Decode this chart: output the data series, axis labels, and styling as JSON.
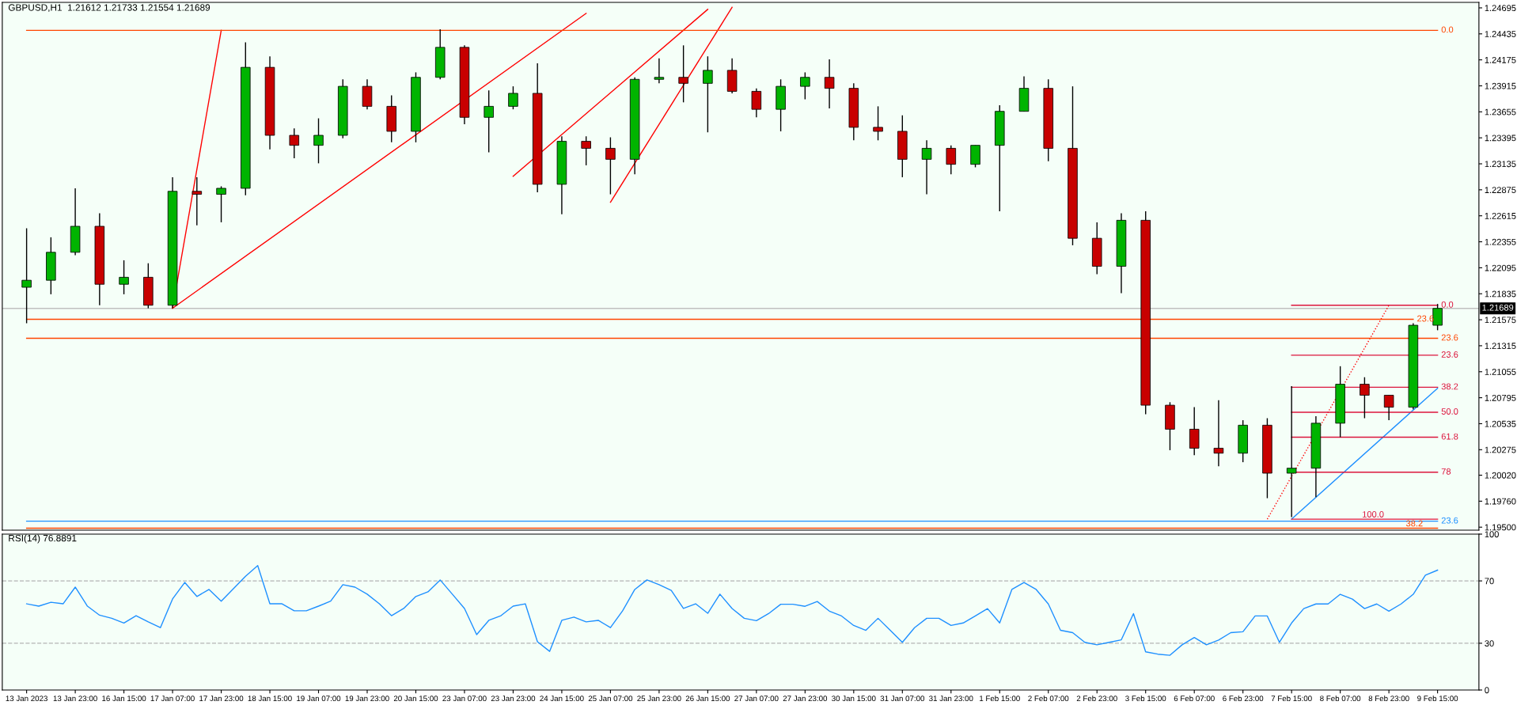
{
  "chart_data": [
    {
      "type": "candlestick",
      "title": "GBPUSD,H1  1.21612 1.21733 1.21554 1.21689",
      "categories": [
        null,
        null,
        null,
        null,
        null,
        null,
        null,
        null,
        null,
        null,
        null,
        null,
        null,
        null,
        null,
        null,
        null,
        null,
        null,
        null,
        null,
        null,
        null,
        null,
        null,
        null,
        null,
        null,
        null,
        null,
        null,
        null,
        null,
        null,
        null,
        null,
        null,
        null,
        null,
        null,
        null,
        null,
        null,
        null,
        null,
        null,
        null,
        null,
        null,
        null,
        null,
        null,
        null,
        null,
        null,
        null,
        null,
        null,
        null
      ],
      "ohlc": [
        [
          1.219,
          1.2249,
          1.2154,
          1.2197
        ],
        [
          1.2197,
          1.224,
          1.2183,
          1.2225
        ],
        [
          1.2225,
          1.2289,
          1.2222,
          1.2251
        ],
        [
          1.2251,
          1.2264,
          1.2172,
          1.2193
        ],
        [
          1.2193,
          1.2217,
          1.2183,
          1.22
        ],
        [
          1.22,
          1.2214,
          1.2169,
          1.2172
        ],
        [
          1.2172,
          1.23,
          1.2169,
          1.2286
        ],
        [
          1.2286,
          1.23,
          1.2252,
          1.2283
        ],
        [
          1.2283,
          1.2291,
          1.2255,
          1.2289
        ],
        [
          1.2289,
          1.2435,
          1.2282,
          1.241
        ],
        [
          1.241,
          1.2421,
          1.2328,
          1.2342
        ],
        [
          1.2342,
          1.2349,
          1.2319,
          1.2332
        ],
        [
          1.2332,
          1.2359,
          1.2314,
          1.2342
        ],
        [
          1.2342,
          1.2398,
          1.2339,
          1.2391
        ],
        [
          1.2391,
          1.2398,
          1.2368,
          1.2371
        ],
        [
          1.2371,
          1.2382,
          1.2335,
          1.2346
        ],
        [
          1.2346,
          1.2405,
          1.2335,
          1.24
        ],
        [
          1.24,
          1.2448,
          1.2398,
          1.243
        ],
        [
          1.243,
          1.2432,
          1.2353,
          1.236
        ],
        [
          1.236,
          1.2387,
          1.2325,
          1.2371
        ],
        [
          1.2371,
          1.2391,
          1.2368,
          1.2384
        ],
        [
          1.2384,
          1.2414,
          1.2285,
          1.2293
        ],
        [
          1.2293,
          1.2341,
          1.2263,
          1.2336
        ],
        [
          1.2336,
          1.2341,
          1.2312,
          1.2329
        ],
        [
          1.2329,
          1.234,
          1.2283,
          1.2318
        ],
        [
          1.2318,
          1.24,
          1.2303,
          1.2398
        ],
        [
          1.2398,
          1.2419,
          1.2394,
          1.24
        ],
        [
          1.24,
          1.2432,
          1.2375,
          1.2394
        ],
        [
          1.2394,
          1.2421,
          1.2345,
          1.2407
        ],
        [
          1.2407,
          1.2419,
          1.2384,
          1.2386
        ],
        [
          1.2386,
          1.2389,
          1.236,
          1.2368
        ],
        [
          1.2368,
          1.2398,
          1.2346,
          1.2391
        ],
        [
          1.2391,
          1.2405,
          1.2378,
          1.24
        ],
        [
          1.24,
          1.2418,
          1.2369,
          1.2389
        ],
        [
          1.2389,
          1.2394,
          1.2337,
          1.235
        ],
        [
          1.235,
          1.2371,
          1.2337,
          1.2346
        ],
        [
          1.2346,
          1.2362,
          1.23,
          1.2318
        ],
        [
          1.2318,
          1.2337,
          1.2283,
          1.2329
        ],
        [
          1.2329,
          1.2332,
          1.2303,
          1.2313
        ],
        [
          1.2313,
          1.2332,
          1.231,
          1.2332
        ],
        [
          1.2332,
          1.2372,
          1.2266,
          1.2366
        ],
        [
          1.2366,
          1.2401,
          1.2366,
          1.2389
        ],
        [
          1.2389,
          1.2398,
          1.2316,
          1.2329
        ],
        [
          1.2329,
          1.2391,
          1.2232,
          1.2239
        ],
        [
          1.2239,
          1.2255,
          1.2203,
          1.2211
        ],
        [
          1.2211,
          1.2264,
          1.2184,
          1.2257
        ],
        [
          1.2257,
          1.2266,
          1.2063,
          1.2072
        ],
        [
          1.2072,
          1.2075,
          1.2027,
          1.2048
        ],
        [
          1.2048,
          1.207,
          1.2022,
          1.2029
        ],
        [
          1.2029,
          1.2077,
          1.2011,
          1.2024
        ],
        [
          1.2024,
          1.2057,
          1.2015,
          1.2052
        ],
        [
          1.2052,
          1.2059,
          1.1979,
          1.2004
        ],
        [
          1.2004,
          1.2091,
          1.196,
          1.2009
        ],
        [
          1.2009,
          1.2061,
          1.198,
          1.2054
        ],
        [
          1.2054,
          1.2111,
          1.204,
          1.2093
        ],
        [
          1.2093,
          1.21,
          1.2059,
          1.2082
        ],
        [
          1.2082,
          1.2082,
          1.2057,
          1.207
        ],
        [
          1.207,
          1.2154,
          1.2068,
          1.2152
        ],
        [
          1.2152,
          1.21733,
          1.2147,
          1.21689
        ]
      ],
      "colors": [
        "#00b400",
        "#00b400",
        "#00b400",
        "#c80000",
        "#00b400",
        "#c80000",
        "#00b400",
        "#c80000",
        "#00b400",
        "#00b400",
        "#c80000",
        "#c80000",
        "#00b400",
        "#00b400",
        "#c80000",
        "#c80000",
        "#00b400",
        "#00b400",
        "#c80000",
        "#00b400",
        "#00b400",
        "#c80000",
        "#00b400",
        "#c80000",
        "#c80000",
        "#00b400",
        "#00b400",
        "#c80000",
        "#00b400",
        "#c80000",
        "#c80000",
        "#00b400",
        "#00b400",
        "#c80000",
        "#c80000",
        "#c80000",
        "#c80000",
        "#00b400",
        "#c80000",
        "#00b400",
        "#00b400",
        "#00b400",
        "#c80000",
        "#c80000",
        "#c80000",
        "#00b400",
        "#c80000",
        "#c80000",
        "#c80000",
        "#c80000",
        "#00b400",
        "#c80000",
        "#00b400",
        "#00b400",
        "#00b400",
        "#c80000",
        "#c80000",
        "#00b400",
        "#00b400"
      ],
      "series": [
        {
          "type": "line",
          "color": "#ff0000",
          "values": [
            null,
            null,
            null,
            null,
            null,
            null,
            1.2169,
            null,
            1.2447,
            null,
            null,
            null,
            null,
            null,
            null,
            null,
            null,
            null,
            null,
            null,
            null,
            null,
            null,
            null,
            null,
            null,
            null,
            null,
            null,
            null,
            null,
            null,
            null,
            null,
            null,
            null,
            null,
            null,
            null,
            null,
            null,
            null,
            null,
            null,
            null,
            null,
            null,
            null,
            null,
            null,
            null,
            null,
            null,
            null,
            null,
            null,
            null,
            null,
            null
          ]
        },
        {
          "type": "line",
          "color": "#ff0000",
          "values": [
            null,
            null,
            null,
            null,
            null,
            null,
            1.2169,
            null,
            null,
            null,
            null,
            null,
            null,
            null,
            null,
            null,
            null,
            null,
            null,
            null,
            null,
            null,
            null,
            1.2464,
            null,
            null,
            null,
            null,
            null,
            null,
            null,
            null,
            null,
            null,
            null,
            null,
            null,
            null,
            null,
            null,
            null,
            null,
            null,
            null,
            null,
            null,
            null,
            null,
            null,
            null,
            null,
            null,
            null,
            null,
            null,
            null,
            null,
            null,
            null
          ]
        },
        {
          "type": "line",
          "color": "#ff0000",
          "values": [
            null,
            null,
            null,
            null,
            null,
            null,
            null,
            null,
            null,
            null,
            null,
            null,
            null,
            null,
            null,
            null,
            null,
            null,
            null,
            null,
            1.2301,
            null,
            null,
            null,
            null,
            null,
            null,
            null,
            1.2468,
            null,
            null,
            null,
            null,
            null,
            null,
            null,
            null,
            null,
            null,
            null,
            null,
            null,
            null,
            null,
            null,
            null,
            null,
            null,
            null,
            null,
            null,
            null,
            null,
            null,
            null,
            null,
            null,
            null,
            null
          ]
        },
        {
          "type": "line",
          "color": "#ff0000",
          "values": [
            null,
            null,
            null,
            null,
            null,
            null,
            null,
            null,
            null,
            null,
            null,
            null,
            null,
            null,
            null,
            null,
            null,
            null,
            null,
            null,
            null,
            null,
            null,
            null,
            1.2275,
            null,
            null,
            null,
            null,
            1.247,
            null,
            null,
            null,
            null,
            null,
            null,
            null,
            null,
            null,
            null,
            null,
            null,
            null,
            null,
            null,
            null,
            null,
            null,
            null,
            null,
            null,
            null,
            null,
            null,
            null,
            null,
            null,
            null,
            null
          ]
        },
        {
          "type": "line",
          "color": "#ff0000",
          "line_style": "dotted",
          "values": [
            null,
            null,
            null,
            null,
            null,
            null,
            null,
            null,
            null,
            null,
            null,
            null,
            null,
            null,
            null,
            null,
            null,
            null,
            null,
            null,
            null,
            null,
            null,
            null,
            null,
            null,
            null,
            null,
            null,
            null,
            null,
            null,
            null,
            null,
            null,
            null,
            null,
            null,
            null,
            null,
            null,
            null,
            null,
            null,
            null,
            null,
            null,
            null,
            null,
            null,
            null,
            1.1958,
            null,
            null,
            null,
            null,
            1.2172,
            null,
            null
          ]
        },
        {
          "type": "line",
          "color": "#1e90ff",
          "values": [
            null,
            null,
            null,
            null,
            null,
            null,
            null,
            null,
            null,
            null,
            null,
            null,
            null,
            null,
            null,
            null,
            null,
            null,
            null,
            null,
            null,
            null,
            null,
            null,
            null,
            null,
            null,
            null,
            null,
            null,
            null,
            null,
            null,
            null,
            null,
            null,
            null,
            null,
            null,
            null,
            null,
            null,
            null,
            null,
            null,
            null,
            null,
            null,
            null,
            null,
            null,
            null,
            1.1958,
            null,
            null,
            null,
            null,
            null,
            1.2089
          ]
        },
        {
          "type": "line",
          "name": "0.0",
          "color": "#ff4500",
          "values": [
            1.2447,
            null,
            null,
            null,
            null,
            null,
            null,
            null,
            null,
            null,
            null,
            null,
            null,
            null,
            null,
            null,
            null,
            null,
            null,
            null,
            null,
            null,
            null,
            null,
            null,
            null,
            null,
            null,
            null,
            null,
            null,
            null,
            null,
            null,
            null,
            null,
            null,
            null,
            null,
            null,
            null,
            null,
            null,
            null,
            null,
            null,
            null,
            null,
            null,
            null,
            null,
            null,
            null,
            null,
            null,
            null,
            null,
            null,
            1.2447
          ]
        },
        {
          "type": "line",
          "name": "23.6",
          "color": "#ff4500",
          "values": [
            1.2158,
            null,
            null,
            null,
            null,
            null,
            null,
            null,
            null,
            null,
            null,
            null,
            null,
            null,
            null,
            null,
            null,
            null,
            null,
            null,
            null,
            null,
            null,
            null,
            null,
            null,
            null,
            null,
            null,
            null,
            null,
            null,
            null,
            null,
            null,
            null,
            null,
            null,
            null,
            null,
            null,
            null,
            null,
            null,
            null,
            null,
            null,
            null,
            null,
            null,
            null,
            null,
            null,
            null,
            null,
            null,
            null,
            1.2158,
            null
          ]
        },
        {
          "type": "line",
          "name": "23.6",
          "color": "#ff4500",
          "values": [
            1.2139,
            null,
            null,
            null,
            null,
            null,
            null,
            null,
            null,
            null,
            null,
            null,
            null,
            null,
            null,
            null,
            null,
            null,
            null,
            null,
            null,
            null,
            null,
            null,
            null,
            null,
            null,
            null,
            null,
            null,
            null,
            null,
            null,
            null,
            null,
            null,
            null,
            null,
            null,
            null,
            null,
            null,
            null,
            null,
            null,
            null,
            null,
            null,
            null,
            null,
            null,
            null,
            null,
            null,
            null,
            null,
            null,
            null,
            1.2139
          ]
        },
        {
          "type": "line",
          "name": "23.6",
          "color": "#1e90ff",
          "values": [
            1.1956,
            null,
            null,
            null,
            null,
            null,
            null,
            null,
            null,
            null,
            null,
            null,
            null,
            null,
            null,
            null,
            null,
            null,
            null,
            null,
            null,
            null,
            null,
            null,
            null,
            null,
            null,
            null,
            null,
            null,
            null,
            null,
            null,
            null,
            null,
            null,
            null,
            null,
            null,
            null,
            null,
            null,
            null,
            null,
            null,
            null,
            null,
            null,
            null,
            null,
            null,
            null,
            null,
            null,
            null,
            null,
            null,
            null,
            1.1956
          ]
        },
        {
          "type": "line",
          "name": "38.2",
          "color": "#ff4500",
          "values": [
            1.1949,
            null,
            null,
            null,
            null,
            null,
            null,
            null,
            null,
            null,
            null,
            null,
            null,
            null,
            null,
            null,
            null,
            null,
            null,
            null,
            null,
            null,
            null,
            null,
            null,
            null,
            null,
            null,
            null,
            null,
            null,
            null,
            null,
            null,
            null,
            null,
            null,
            null,
            null,
            null,
            null,
            null,
            null,
            null,
            null,
            null,
            null,
            null,
            null,
            null,
            null,
            null,
            null,
            null,
            null,
            null,
            null,
            null,
            1.1949
          ]
        },
        {
          "type": "line",
          "name": "0.0",
          "color": "#dc143c",
          "values": [
            null,
            null,
            null,
            null,
            null,
            null,
            null,
            null,
            null,
            null,
            null,
            null,
            null,
            null,
            null,
            null,
            null,
            null,
            null,
            null,
            null,
            null,
            null,
            null,
            null,
            null,
            null,
            null,
            null,
            null,
            null,
            null,
            null,
            null,
            null,
            null,
            null,
            null,
            null,
            null,
            null,
            null,
            null,
            null,
            null,
            null,
            null,
            null,
            null,
            null,
            null,
            null,
            1.2172,
            null,
            null,
            null,
            null,
            null,
            1.2172
          ]
        },
        {
          "type": "line",
          "name": "23.6",
          "color": "#dc143c",
          "values": [
            null,
            null,
            null,
            null,
            null,
            null,
            null,
            null,
            null,
            null,
            null,
            null,
            null,
            null,
            null,
            null,
            null,
            null,
            null,
            null,
            null,
            null,
            null,
            null,
            null,
            null,
            null,
            null,
            null,
            null,
            null,
            null,
            null,
            null,
            null,
            null,
            null,
            null,
            null,
            null,
            null,
            null,
            null,
            null,
            null,
            null,
            null,
            null,
            null,
            null,
            null,
            null,
            1.2122,
            null,
            null,
            null,
            null,
            null,
            1.2122
          ]
        },
        {
          "type": "line",
          "name": "38.2",
          "color": "#dc143c",
          "values": [
            null,
            null,
            null,
            null,
            null,
            null,
            null,
            null,
            null,
            null,
            null,
            null,
            null,
            null,
            null,
            null,
            null,
            null,
            null,
            null,
            null,
            null,
            null,
            null,
            null,
            null,
            null,
            null,
            null,
            null,
            null,
            null,
            null,
            null,
            null,
            null,
            null,
            null,
            null,
            null,
            null,
            null,
            null,
            null,
            null,
            null,
            null,
            null,
            null,
            null,
            null,
            null,
            1.209,
            null,
            null,
            null,
            null,
            null,
            1.209
          ]
        },
        {
          "type": "line",
          "name": "50.0",
          "color": "#dc143c",
          "values": [
            null,
            null,
            null,
            null,
            null,
            null,
            null,
            null,
            null,
            null,
            null,
            null,
            null,
            null,
            null,
            null,
            null,
            null,
            null,
            null,
            null,
            null,
            null,
            null,
            null,
            null,
            null,
            null,
            null,
            null,
            null,
            null,
            null,
            null,
            null,
            null,
            null,
            null,
            null,
            null,
            null,
            null,
            null,
            null,
            null,
            null,
            null,
            null,
            null,
            null,
            null,
            null,
            1.2065,
            null,
            null,
            null,
            null,
            null,
            1.2065
          ]
        },
        {
          "type": "line",
          "name": "61.8",
          "color": "#dc143c",
          "values": [
            null,
            null,
            null,
            null,
            null,
            null,
            null,
            null,
            null,
            null,
            null,
            null,
            null,
            null,
            null,
            null,
            null,
            null,
            null,
            null,
            null,
            null,
            null,
            null,
            null,
            null,
            null,
            null,
            null,
            null,
            null,
            null,
            null,
            null,
            null,
            null,
            null,
            null,
            null,
            null,
            null,
            null,
            null,
            null,
            null,
            null,
            null,
            null,
            null,
            null,
            null,
            null,
            1.204,
            null,
            null,
            null,
            null,
            null,
            1.204
          ]
        },
        {
          "type": "line",
          "name": "78",
          "color": "#dc143c",
          "values": [
            null,
            null,
            null,
            null,
            null,
            null,
            null,
            null,
            null,
            null,
            null,
            null,
            null,
            null,
            null,
            null,
            null,
            null,
            null,
            null,
            null,
            null,
            null,
            null,
            null,
            null,
            null,
            null,
            null,
            null,
            null,
            null,
            null,
            null,
            null,
            null,
            null,
            null,
            null,
            null,
            null,
            null,
            null,
            null,
            null,
            null,
            null,
            null,
            null,
            null,
            null,
            null,
            1.2005,
            null,
            null,
            null,
            null,
            null,
            1.2005
          ]
        },
        {
          "type": "line",
          "name": "100.0",
          "color": "#dc143c",
          "values": [
            null,
            null,
            null,
            null,
            null,
            null,
            null,
            null,
            null,
            null,
            null,
            null,
            null,
            null,
            null,
            null,
            null,
            null,
            null,
            null,
            null,
            null,
            null,
            null,
            null,
            null,
            null,
            null,
            null,
            null,
            null,
            null,
            null,
            null,
            null,
            null,
            null,
            null,
            null,
            null,
            null,
            null,
            null,
            null,
            null,
            null,
            null,
            null,
            null,
            null,
            null,
            null,
            1.1958,
            null,
            null,
            null,
            null,
            null,
            1.1958
          ]
        }
      ],
      "ref_lines": [
        {
          "axis": "y",
          "value": 1.21689,
          "label": "1.21689",
          "color": "#c0c0c0"
        }
      ],
      "ylim": [
        1.1947,
        1.2475
      ],
      "yticks": [
        {
          "value": 1.195,
          "label": "1.19500"
        },
        {
          "value": 1.1976,
          "label": "1.19760"
        },
        {
          "value": 1.2002,
          "label": "1.20020"
        },
        {
          "value": 1.20275,
          "label": "1.20275"
        },
        {
          "value": 1.20535,
          "label": "1.20535"
        },
        {
          "value": 1.20795,
          "label": "1.20795"
        },
        {
          "value": 1.21055,
          "label": "1.21055"
        },
        {
          "value": 1.21315,
          "label": "1.21315"
        },
        {
          "value": 1.21575,
          "label": "1.21575"
        },
        {
          "value": 1.21835,
          "label": "1.21835"
        },
        {
          "value": 1.22095,
          "label": "1.22095"
        },
        {
          "value": 1.22355,
          "label": "1.22355"
        },
        {
          "value": 1.22615,
          "label": "1.22615"
        },
        {
          "value": 1.22875,
          "label": "1.22875"
        },
        {
          "value": 1.23135,
          "label": "1.23135"
        },
        {
          "value": 1.23395,
          "label": "1.23395"
        },
        {
          "value": 1.23655,
          "label": "1.23655"
        },
        {
          "value": 1.23915,
          "label": "1.23915"
        },
        {
          "value": 1.24175,
          "label": "1.24175"
        },
        {
          "value": 1.24435,
          "label": "1.24435"
        },
        {
          "value": 1.24695,
          "label": "1.24695"
        }
      ],
      "tick_labels": "y"
    },
    {
      "type": "line",
      "title": "RSI(14) 76.8891",
      "categories": [
        "13 Jan 2023",
        null,
        null,
        null,
        "13 Jan 23:00",
        null,
        null,
        null,
        "16 Jan 15:00",
        null,
        null,
        null,
        "17 Jan 07:00",
        null,
        null,
        null,
        "17 Jan 23:00",
        null,
        null,
        null,
        "18 Jan 15:00",
        null,
        null,
        null,
        "19 Jan 07:00",
        null,
        null,
        null,
        "19 Jan 23:00",
        null,
        null,
        null,
        "20 Jan 15:00",
        null,
        null,
        null,
        "23 Jan 07:00",
        null,
        null,
        null,
        "23 Jan 23:00",
        null,
        null,
        null,
        "24 Jan 15:00",
        null,
        null,
        null,
        "25 Jan 07:00",
        null,
        null,
        null,
        "25 Jan 23:00",
        null,
        null,
        null,
        "26 Jan 15:00",
        null,
        null,
        null,
        "27 Jan 07:00",
        null,
        null,
        null,
        "27 Jan 23:00",
        null,
        null,
        null,
        "30 Jan 15:00",
        null,
        null,
        null,
        "31 Jan 07:00",
        null,
        null,
        null,
        "31 Jan 23:00",
        null,
        null,
        null,
        "1 Feb 15:00",
        null,
        null,
        null,
        "2 Feb 07:00",
        null,
        null,
        null,
        "2 Feb 23:00",
        null,
        null,
        null,
        "3 Feb 15:00",
        null,
        null,
        null,
        "6 Feb 07:00",
        null,
        null,
        null,
        "6 Feb 23:00",
        null,
        null,
        null,
        "7 Feb 15:00",
        null,
        null,
        null,
        "8 Feb 07:00",
        null,
        null,
        null,
        "8 Feb 23:00",
        null,
        null,
        null,
        "9 Feb 15:00"
      ],
      "series": [
        {
          "color": "#1e90ff",
          "values": [
            55.3,
            53.8,
            56.3,
            55.3,
            66,
            53.8,
            48,
            46,
            43,
            47.7,
            43.7,
            40,
            58.4,
            69,
            60,
            64.5,
            57,
            65,
            73,
            79.8,
            55.3,
            55.3,
            50.8,
            50.8,
            53.8,
            57,
            67.6,
            66,
            61.5,
            55.3,
            47.7,
            52.3,
            60,
            63,
            70.6,
            61.5,
            52.3,
            35.5,
            44.7,
            47.7,
            53.8,
            55.3,
            31,
            24.8,
            44.7,
            46.8,
            43.7,
            44.7,
            40,
            50.8,
            64.5,
            70.6,
            67.6,
            63.9,
            52.3,
            55.3,
            49.2,
            61.5,
            52.3,
            46,
            44.5,
            49,
            55,
            55,
            53.7,
            56.8,
            50.6,
            47.5,
            41.4,
            38.3,
            46,
            38.3,
            30.6,
            40,
            46,
            46,
            41.4,
            43,
            47.5,
            52.2,
            43,
            64.5,
            69,
            64.5,
            55.2,
            38.3,
            36.8,
            30.6,
            29,
            30.6,
            32.2,
            49,
            24.5,
            23,
            22.3,
            29,
            33.7,
            29,
            32,
            36.8,
            37.4,
            47.5,
            47.5,
            30.6,
            43,
            52.2,
            55.2,
            55.2,
            61.4,
            58.3,
            52.2,
            55.2,
            50.6,
            55.2,
            61.4,
            73.7,
            76.9
          ]
        }
      ],
      "ref_lines": [
        {
          "axis": "y",
          "value": 70,
          "color": "#b4b4b4",
          "line_style": "dashed"
        },
        {
          "axis": "y",
          "value": 30,
          "color": "#b4b4b4",
          "line_style": "dashed"
        }
      ],
      "ylim": [
        0,
        100
      ],
      "yticks": [
        0,
        30,
        70,
        100
      ]
    }
  ]
}
